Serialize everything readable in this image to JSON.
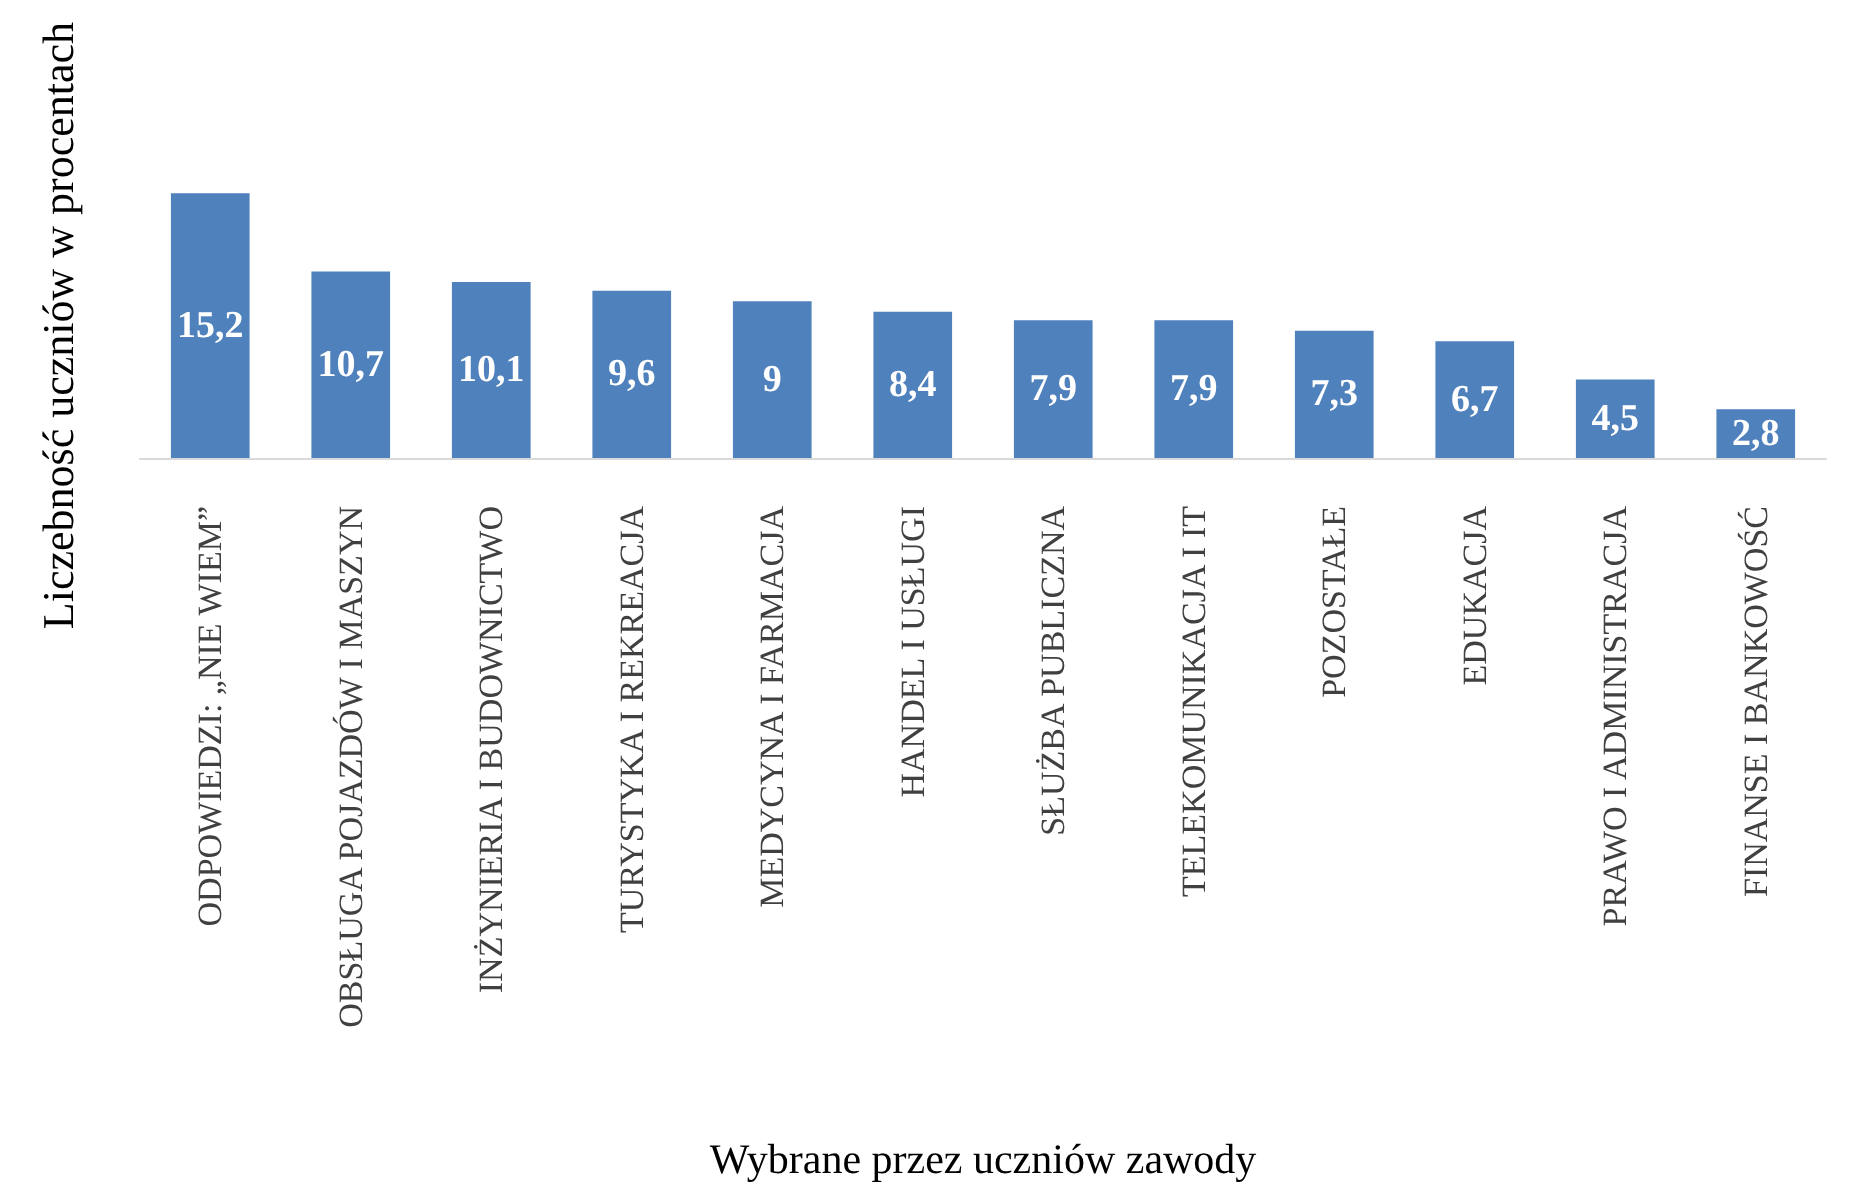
{
  "chart_data": {
    "type": "bar",
    "xlabel": "Wybrane przez uczniów zawody",
    "ylabel": "Liczebność uczniów w procentach",
    "categories": [
      "ODPOWIEDZI: „NIE WIEM”",
      "OBSŁUGA POJAZDÓW I MASZYN",
      "INŻYNIERIA I BUDOWNICTWO",
      "TURYSTYKA I REKREACJA",
      "MEDYCYNA I FARMACJA",
      "HANDEL I USŁUGI",
      "SŁUŻBA PUBLICZNA",
      "TELEKOMUNIKACJA I IT",
      "POZOSTAŁE",
      "EDUKACJA",
      "PRAWO I ADMINISTRACJA",
      "FINANSE I BANKOWOŚĆ"
    ],
    "values": [
      15.2,
      10.7,
      10.1,
      9.6,
      9,
      8.4,
      7.9,
      7.9,
      7.3,
      6.7,
      4.5,
      2.8
    ],
    "value_labels": [
      "15,2",
      "10,7",
      "10,1",
      "9,6",
      "9",
      "8,4",
      "7,9",
      "7,9",
      "7,3",
      "6,7",
      "4,5",
      "2,8"
    ],
    "color": "#4f81bd",
    "tick_labels": "x",
    "grid": false
  }
}
